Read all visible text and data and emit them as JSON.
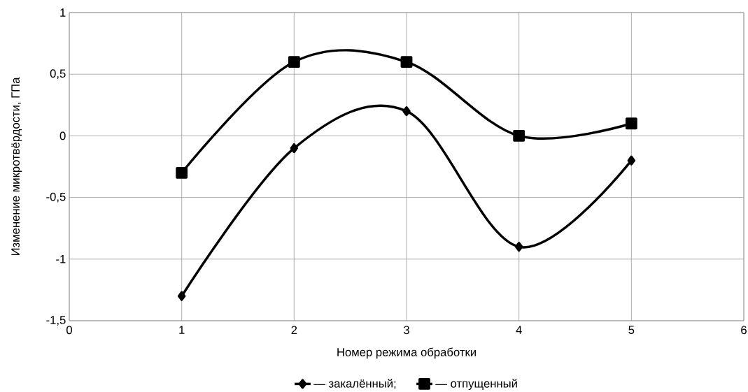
{
  "chart_data": {
    "type": "line",
    "xlabel": "Номер режима обработки",
    "ylabel": "Изменение микротвёрдости,  ГПа",
    "x": [
      1,
      2,
      3,
      4,
      5
    ],
    "series": [
      {
        "name": "— закалённый;",
        "color": "#000000",
        "marker": "diamond",
        "values": [
          -1.3,
          -0.1,
          0.2,
          -0.9,
          -0.2
        ]
      },
      {
        "name": "— отпущенный",
        "color": "#000000",
        "marker": "square",
        "values": [
          -0.3,
          0.6,
          0.6,
          0,
          0.1
        ]
      }
    ],
    "xlim": [
      0,
      6
    ],
    "xticks": [
      0,
      1,
      2,
      3,
      4,
      5,
      6
    ],
    "ylim": [
      -1.5,
      1
    ],
    "yticks": [
      {
        "value": -1.5,
        "label": "-1,5"
      },
      {
        "value": -1,
        "label": "-1"
      },
      {
        "value": -0.5,
        "label": "-0,5"
      },
      {
        "value": 0,
        "label": "0"
      },
      {
        "value": 0.5,
        "label": "0,5"
      },
      {
        "value": 1,
        "label": "1"
      }
    ],
    "grid": true,
    "legend": "bottom",
    "line_style": "solid"
  }
}
